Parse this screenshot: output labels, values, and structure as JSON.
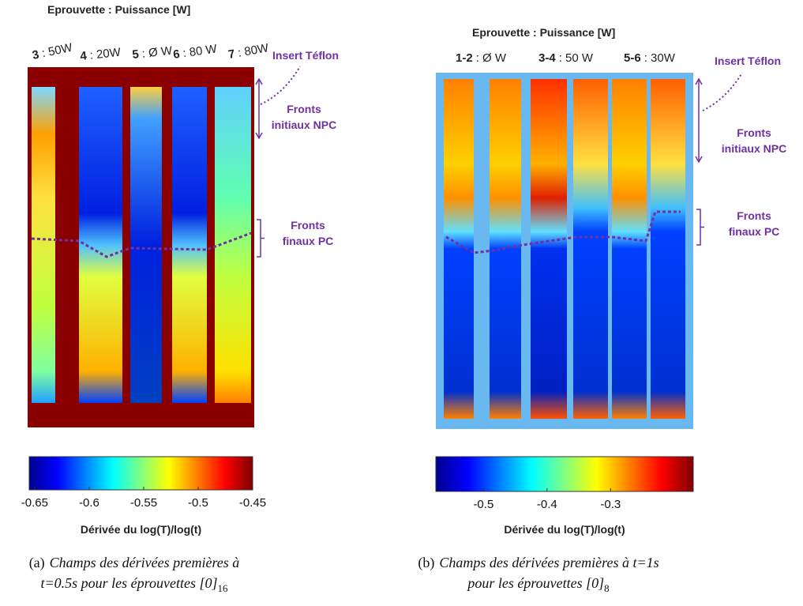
{
  "panels": [
    {
      "header": "Eprouvette : Puissance [W]",
      "specimens": [
        {
          "num": "3",
          "power": ": 50W"
        },
        {
          "num": "4",
          "power": ": 20W"
        },
        {
          "num": "5",
          "power": ": Ø W"
        },
        {
          "num": "6",
          "power": ": 80 W"
        },
        {
          "num": "7",
          "power": ": 80W"
        }
      ],
      "insert": "Insert Téflon",
      "initial_fronts": [
        "Fronts",
        "initiaux NPC"
      ],
      "final_fronts": [
        "Fronts",
        "finaux PC"
      ],
      "colorbar": {
        "lim": [
          -0.655,
          -0.45
        ],
        "ticks": [
          -0.65,
          -0.6,
          -0.55,
          -0.5,
          -0.45
        ],
        "label": "Dérivée du log(T)/log(t)"
      },
      "caption": {
        "label": "(a)",
        "lines": [
          "Champs des dérivées premières à",
          "t=0.5s pour les éprouvettes [0]"
        ],
        "subscript": "16"
      }
    },
    {
      "header": "Eprouvette : Puissance [W]",
      "specimens": [
        {
          "num": "1-2",
          "power": ": Ø W"
        },
        {
          "num": "3-4",
          "power": ": 50 W"
        },
        {
          "num": "5-6",
          "power": ": 30W"
        }
      ],
      "insert": "Insert Téflon",
      "initial_fronts": [
        "Fronts",
        "initiaux NPC"
      ],
      "final_fronts": [
        "Fronts",
        "finaux PC"
      ],
      "colorbar": {
        "lim": [
          -0.575,
          -0.17
        ],
        "ticks": [
          -0.5,
          -0.4,
          -0.3
        ],
        "label": "Dérivée du log(T)/log(t)"
      },
      "caption": {
        "label": "(b)",
        "lines": [
          "Champs des dérivées premières à t=1s",
          "pour les éprouvettes [0]"
        ],
        "subscript": "8"
      }
    }
  ]
}
